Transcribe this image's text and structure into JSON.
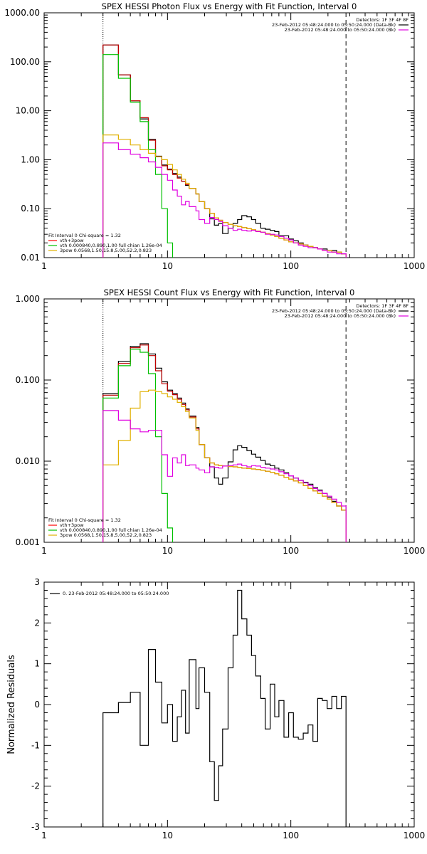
{
  "chart_data": [
    {
      "type": "line",
      "title": "SPEX HESSI Photon Flux vs Energy with Fit Function, Interval 0",
      "xscale": "log",
      "yscale": "log",
      "xlim": [
        1,
        1000
      ],
      "ylim": [
        0.01,
        1000
      ],
      "xticks": [
        1,
        10,
        100,
        1000
      ],
      "xtick_labels": [
        "1",
        "10",
        "100",
        "1000"
      ],
      "yticks": [
        0.01,
        0.1,
        1,
        10,
        100,
        1000
      ],
      "ytick_labels": [
        "0.01",
        "0.10",
        "1.00",
        "10.00",
        "100.00",
        "1000.00"
      ],
      "vlines": [
        {
          "x": 3,
          "style": "dotted",
          "color": "#000000"
        },
        {
          "x": 280,
          "style": "dashed",
          "color": "#000000"
        }
      ],
      "legend_top": {
        "placement": "top-right",
        "header": "Detectors: 1F 3F 4F 8F",
        "entries": [
          {
            "label": "23-Feb-2012 05:48:24.000 to 05:50:24.000 (Data-Bk)",
            "color": "#000000"
          },
          {
            "label": "23-Feb-2012 05:48:24.000 to 05:50:24.000 (Bk)",
            "color": "#e000e0"
          }
        ]
      },
      "legend_bottom": {
        "placement": "bottom-left",
        "header": "Fit Interval 0   Chi-square = 1.32",
        "entries": [
          {
            "label": "vth+3pow",
            "color": "#ff0000"
          },
          {
            "label": "vth 0.000840,0.890,1.00  full chian 1.26e-04",
            "color": "#00c000"
          },
          {
            "label": "3pow 0.0568,1.50,15.8,5.00,52.2,0.823",
            "color": "#e0b000"
          }
        ]
      },
      "edges": [
        3,
        4,
        5,
        6,
        7,
        8,
        9,
        10,
        11,
        12,
        13,
        14,
        15,
        17,
        18,
        20,
        22,
        24,
        26,
        28,
        31,
        34,
        37,
        40,
        44,
        48,
        52,
        57,
        62,
        68,
        74,
        80,
        88,
        96,
        105,
        115,
        126,
        138,
        151,
        165,
        180,
        197,
        215,
        235,
        257,
        280
      ],
      "series": [
        {
          "key": "data",
          "color": "#000000",
          "values": [
            220,
            54,
            16,
            6.8,
            2.6,
            1.18,
            0.78,
            0.64,
            0.52,
            0.44,
            0.36,
            0.3,
            0.26,
            0.2,
            0.14,
            0.1,
            0.062,
            0.046,
            0.05,
            0.031,
            0.04,
            0.05,
            0.06,
            0.072,
            0.068,
            0.06,
            0.05,
            0.04,
            0.038,
            0.036,
            0.034,
            0.028,
            0.028,
            0.024,
            0.022,
            0.02,
            0.018,
            0.017,
            0.016,
            0.015,
            0.015,
            0.014,
            0.014,
            0.013,
            0.012
          ]
        },
        {
          "key": "model",
          "color": "#c00000",
          "values": [
            220,
            54,
            16,
            7.2,
            2.5,
            1.15,
            0.75,
            0.62,
            0.5,
            0.42,
            0.36,
            0.31,
            0.26,
            0.2,
            0.14,
            0.1,
            0.08,
            0.065,
            0.058,
            0.052,
            0.048,
            0.045,
            0.043,
            0.041,
            0.039,
            0.037,
            0.035,
            0.033,
            0.031,
            0.029,
            0.027,
            0.025,
            0.023,
            0.021,
            0.02,
            0.019,
            0.018,
            0.017,
            0.016,
            0.015,
            0.014,
            0.014,
            0.013,
            0.013,
            0.012
          ]
        },
        {
          "key": "thermal",
          "color": "#00c000",
          "values": [
            140,
            46,
            15,
            6.0,
            1.6,
            0.5,
            0.1,
            0.02,
            0.003
          ]
        },
        {
          "key": "power",
          "color": "#e0b000",
          "values": [
            3.2,
            2.6,
            2.0,
            1.6,
            1.35,
            1.15,
            1.0,
            0.8,
            0.62,
            0.5,
            0.4,
            0.33,
            0.26,
            0.2,
            0.14,
            0.1,
            0.08,
            0.065,
            0.058,
            0.052,
            0.048,
            0.045,
            0.043,
            0.041,
            0.039,
            0.037,
            0.035,
            0.033,
            0.031,
            0.029,
            0.027,
            0.025,
            0.023,
            0.021,
            0.02,
            0.019,
            0.018,
            0.017,
            0.016,
            0.015,
            0.014,
            0.014,
            0.013,
            0.013,
            0.012
          ]
        },
        {
          "key": "background",
          "color": "#e000e0",
          "values": [
            2.2,
            1.6,
            1.3,
            1.1,
            0.9,
            0.7,
            0.5,
            0.38,
            0.24,
            0.18,
            0.12,
            0.14,
            0.11,
            0.09,
            0.06,
            0.05,
            0.066,
            0.06,
            0.055,
            0.045,
            0.04,
            0.036,
            0.038,
            0.036,
            0.035,
            0.036,
            0.034,
            0.033,
            0.03,
            0.03,
            0.029,
            0.027,
            0.025,
            0.023,
            0.02,
            0.018,
            0.017,
            0.016,
            0.016,
            0.015,
            0.014,
            0.013,
            0.013,
            0.012,
            0.012
          ]
        }
      ]
    },
    {
      "type": "line",
      "title": "SPEX HESSI Count Flux vs Energy with Fit Function, Interval 0",
      "xscale": "log",
      "yscale": "log",
      "xlim": [
        1,
        1000
      ],
      "ylim": [
        0.001,
        1
      ],
      "xticks": [
        1,
        10,
        100,
        1000
      ],
      "xtick_labels": [
        "1",
        "10",
        "100",
        "1000"
      ],
      "yticks": [
        0.001,
        0.01,
        0.1,
        1
      ],
      "ytick_labels": [
        "0.001",
        "0.010",
        "0.100",
        "1.000"
      ],
      "vlines": [
        {
          "x": 3,
          "style": "dotted",
          "color": "#000000"
        },
        {
          "x": 280,
          "style": "dashed",
          "color": "#000000"
        }
      ],
      "legend_top": {
        "placement": "top-right",
        "header": "Detectors: 1F 3F 4F 8F",
        "entries": [
          {
            "label": "23-Feb-2012 05:48:24.000 to 05:50:24.000 (Data-Bk)",
            "color": "#000000"
          },
          {
            "label": "23-Feb-2012 05:48:24.000 to 05:50:24.000 (Bk)",
            "color": "#e000e0"
          }
        ]
      },
      "legend_bottom": {
        "placement": "bottom-left",
        "header": "Fit Interval 0   Chi-square = 1.32",
        "entries": [
          {
            "label": "vth+3pow",
            "color": "#ff0000"
          },
          {
            "label": "vth 0.000840,0.890,1.00  full chian 1.26e-04",
            "color": "#00c000"
          },
          {
            "label": "3pow 0.0568,1.50,15.8,5.00,52.2,0.823",
            "color": "#e0b000"
          }
        ]
      },
      "edges": [
        3,
        4,
        5,
        6,
        7,
        8,
        9,
        10,
        11,
        12,
        13,
        14,
        15,
        17,
        18,
        20,
        22,
        24,
        26,
        28,
        31,
        34,
        37,
        40,
        44,
        48,
        52,
        57,
        62,
        68,
        74,
        80,
        88,
        96,
        105,
        115,
        126,
        138,
        151,
        165,
        180,
        197,
        215,
        235,
        257,
        280
      ],
      "series": [
        {
          "key": "data",
          "color": "#000000",
          "values": [
            0.068,
            0.17,
            0.26,
            0.28,
            0.21,
            0.14,
            0.095,
            0.075,
            0.068,
            0.06,
            0.052,
            0.044,
            0.036,
            0.026,
            0.016,
            0.011,
            0.0085,
            0.0062,
            0.0052,
            0.0062,
            0.0098,
            0.0138,
            0.0155,
            0.0148,
            0.0135,
            0.0122,
            0.0112,
            0.0102,
            0.0092,
            0.0088,
            0.0082,
            0.0078,
            0.0072,
            0.0066,
            0.0062,
            0.0058,
            0.0055,
            0.0052,
            0.0047,
            0.0044,
            0.004,
            0.0036,
            0.0032,
            0.0028,
            0.0025
          ]
        },
        {
          "key": "model",
          "color": "#c00000",
          "values": [
            0.065,
            0.16,
            0.25,
            0.27,
            0.2,
            0.13,
            0.09,
            0.073,
            0.066,
            0.058,
            0.05,
            0.043,
            0.035,
            0.025,
            0.016,
            0.011,
            0.0095,
            0.009,
            0.0088,
            0.0087,
            0.0086,
            0.0085,
            0.0084,
            0.0082,
            0.0081,
            0.008,
            0.0079,
            0.0077,
            0.0075,
            0.0073,
            0.007,
            0.0067,
            0.0063,
            0.006,
            0.0057,
            0.0054,
            0.005,
            0.0046,
            0.0043,
            0.004,
            0.0037,
            0.0034,
            0.0031,
            0.0028,
            0.0025
          ]
        },
        {
          "key": "thermal",
          "color": "#00c000",
          "values": [
            0.06,
            0.15,
            0.24,
            0.22,
            0.12,
            0.02,
            0.004,
            0.0015,
            0.0005
          ]
        },
        {
          "key": "power",
          "color": "#e0b000",
          "values": [
            0.009,
            0.018,
            0.045,
            0.072,
            0.075,
            0.072,
            0.068,
            0.062,
            0.058,
            0.053,
            0.047,
            0.041,
            0.034,
            0.024,
            0.016,
            0.011,
            0.0095,
            0.009,
            0.0088,
            0.0087,
            0.0086,
            0.0085,
            0.0084,
            0.0082,
            0.0081,
            0.008,
            0.0079,
            0.0077,
            0.0075,
            0.0073,
            0.007,
            0.0067,
            0.0063,
            0.006,
            0.0057,
            0.0054,
            0.005,
            0.0046,
            0.0043,
            0.004,
            0.0037,
            0.0034,
            0.0031,
            0.0028,
            0.0025
          ]
        },
        {
          "key": "background",
          "color": "#e000e0",
          "values": [
            0.042,
            0.032,
            0.025,
            0.023,
            0.024,
            0.024,
            0.012,
            0.0065,
            0.011,
            0.0095,
            0.012,
            0.0088,
            0.009,
            0.0082,
            0.0078,
            0.0072,
            0.0085,
            0.0084,
            0.0082,
            0.0087,
            0.0088,
            0.009,
            0.0092,
            0.0088,
            0.0085,
            0.0088,
            0.0087,
            0.0084,
            0.0082,
            0.008,
            0.0078,
            0.0074,
            0.007,
            0.0066,
            0.0062,
            0.0058,
            0.0054,
            0.005,
            0.0046,
            0.0043,
            0.004,
            0.0037,
            0.0034,
            0.0031,
            0.0028
          ]
        }
      ]
    },
    {
      "type": "line",
      "ylabel": "Normalized Residuals",
      "xscale": "log",
      "yscale": "linear",
      "xlim": [
        1,
        1000
      ],
      "ylim": [
        -3,
        3
      ],
      "xticks": [
        1,
        10,
        100,
        1000
      ],
      "xtick_labels": [
        "1",
        "10",
        "100",
        "1000"
      ],
      "yticks": [
        -3,
        -2,
        -1,
        0,
        1,
        2,
        3
      ],
      "ytick_labels": [
        "-3",
        "-2",
        "-1",
        "0",
        "1",
        "2",
        "3"
      ],
      "legend_top": {
        "placement": "top-left",
        "header": "",
        "entries": [
          {
            "label": "0. 23-Feb-2012 05:48:24.000 to 05:50:24.000",
            "color": "#000000"
          }
        ]
      },
      "edges": [
        3,
        4,
        5,
        6,
        7,
        8,
        9,
        10,
        11,
        12,
        13,
        14,
        15,
        17,
        18,
        20,
        22,
        24,
        26,
        28,
        31,
        34,
        37,
        40,
        44,
        48,
        52,
        57,
        62,
        68,
        74,
        80,
        88,
        96,
        105,
        115,
        126,
        138,
        151,
        165,
        180,
        197,
        215,
        235,
        257,
        280
      ],
      "series": [
        {
          "key": "residual",
          "color": "#000000",
          "values": [
            -0.2,
            0.05,
            0.3,
            -1.0,
            1.35,
            0.55,
            -0.45,
            0.0,
            -0.9,
            -0.3,
            0.35,
            -0.7,
            1.1,
            -0.1,
            0.9,
            0.3,
            -1.4,
            -2.35,
            -1.5,
            -0.6,
            0.9,
            1.7,
            2.8,
            2.1,
            1.7,
            1.2,
            0.7,
            0.15,
            -0.6,
            0.5,
            -0.3,
            0.1,
            -0.8,
            -0.2,
            -0.8,
            -0.85,
            -0.7,
            -0.5,
            -0.9,
            0.15,
            0.1,
            -0.1,
            0.2,
            -0.1,
            0.2
          ]
        }
      ]
    }
  ]
}
